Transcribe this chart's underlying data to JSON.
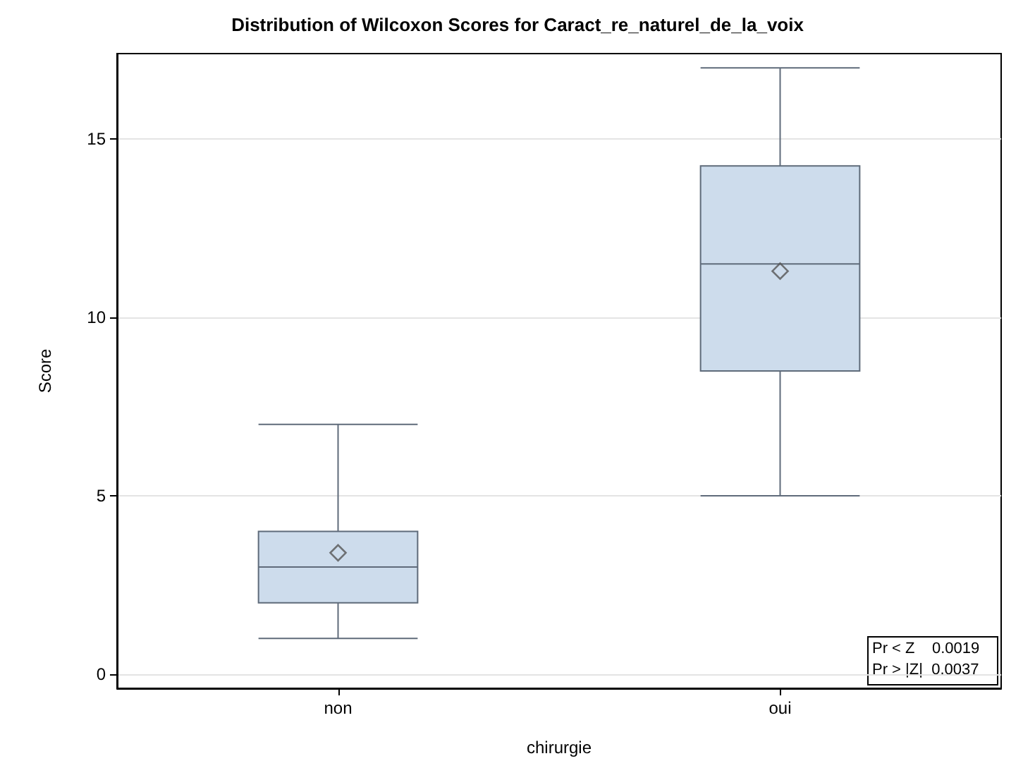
{
  "chart_data": {
    "type": "box",
    "title": "Distribution of Wilcoxon Scores for Caract_re_naturel_de_la_voix",
    "xlabel": "chirurgie",
    "ylabel": "Score",
    "categories": [
      "non",
      "oui"
    ],
    "series": [
      {
        "color": "#cddcec",
        "boxes": [
          {
            "low": 1,
            "q1": 2,
            "median": 3,
            "q3": 4,
            "high": 7,
            "mean": 3.4
          },
          {
            "low": 5,
            "q1": 8.5,
            "median": 11.5,
            "q3": 14.25,
            "high": 17,
            "mean": 11.3
          }
        ]
      }
    ],
    "ylim": [
      -0.4,
      17.4
    ],
    "yticks": [
      0,
      5,
      10,
      15
    ],
    "grid": "y",
    "marker": "diamond",
    "annotations": [
      "Pr < Z    0.0019",
      "Pr > |Z|  0.0037"
    ]
  }
}
